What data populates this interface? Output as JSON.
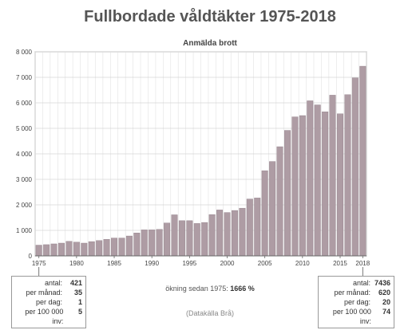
{
  "title": "Fullbordade våldtäkter 1975-2018",
  "chart_data": {
    "type": "bar",
    "title": "Fullbordade våldtäkter 1975-2018",
    "subtitle": "Anmälda brott",
    "xlabel": "",
    "ylabel": "",
    "ylim": [
      0,
      8000
    ],
    "yticks": [
      0,
      1000,
      2000,
      3000,
      4000,
      5000,
      6000,
      7000,
      8000
    ],
    "ytick_labels": [
      "0",
      "1 000",
      "2 000",
      "3 000",
      "4 000",
      "5 000",
      "6 000",
      "7 000",
      "8 000"
    ],
    "xtick_labels": [
      "1975",
      "1980",
      "1985",
      "1990",
      "1995",
      "2000",
      "2005",
      "2010",
      "2015",
      "2018"
    ],
    "grid": true,
    "bar_color": "#ae9ca4",
    "categories": [
      1975,
      1976,
      1977,
      1978,
      1979,
      1980,
      1981,
      1982,
      1983,
      1984,
      1985,
      1986,
      1987,
      1988,
      1989,
      1990,
      1991,
      1992,
      1993,
      1994,
      1995,
      1996,
      1997,
      1998,
      1999,
      2000,
      2001,
      2002,
      2003,
      2004,
      2005,
      2006,
      2007,
      2008,
      2009,
      2010,
      2011,
      2012,
      2013,
      2014,
      2015,
      2016,
      2017,
      2018
    ],
    "values": [
      421,
      440,
      470,
      500,
      570,
      540,
      500,
      560,
      600,
      650,
      700,
      700,
      780,
      900,
      1020,
      1020,
      1040,
      1290,
      1610,
      1380,
      1380,
      1270,
      1310,
      1620,
      1800,
      1700,
      1780,
      1870,
      2230,
      2270,
      3340,
      3700,
      4280,
      4920,
      5450,
      5500,
      6080,
      5920,
      5650,
      6300,
      5570,
      6320,
      6980,
      7436
    ]
  },
  "box_left": {
    "rows": [
      {
        "label": "antal:",
        "value": "421"
      },
      {
        "label": "per månad:",
        "value": "35"
      },
      {
        "label": "per dag:",
        "value": "1"
      },
      {
        "label": "per 100 000 inv:",
        "value": "5"
      }
    ]
  },
  "box_right": {
    "rows": [
      {
        "label": "antal:",
        "value": "7436"
      },
      {
        "label": "per månad:",
        "value": "620"
      },
      {
        "label": "per dag:",
        "value": "20"
      },
      {
        "label": "per 100 000 inv:",
        "value": "74"
      }
    ]
  },
  "increase_note": {
    "label": "ökning sedan 1975:",
    "value": "1666 %"
  },
  "source": "(Datakälla Brå)"
}
